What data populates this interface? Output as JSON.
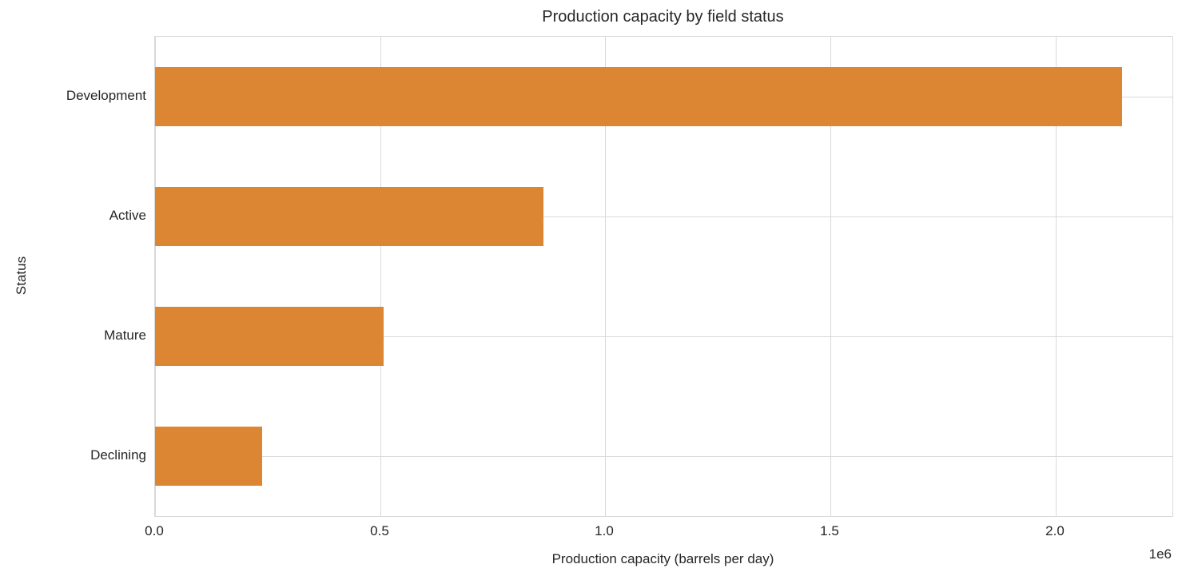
{
  "chart_data": {
    "type": "bar",
    "orientation": "horizontal",
    "title": "Production capacity by field status",
    "xlabel": "Production capacity (barrels per day)",
    "ylabel": "Status",
    "categories": [
      "Development",
      "Active",
      "Mature",
      "Declining"
    ],
    "values": [
      2148000,
      863000,
      508000,
      238000
    ],
    "xlim": [
      0,
      2260000
    ],
    "xticks": [
      0,
      500000,
      1000000,
      1500000,
      2000000
    ],
    "xtick_labels": [
      "0.0",
      "0.5",
      "1.0",
      "1.5",
      "2.0"
    ],
    "offset_text": "1e6",
    "grid": true,
    "legend": "none",
    "bar_color": "#DC8633",
    "grid_color": "#D9D9D9",
    "text_color": "#262626",
    "background_color": "#FFFFFF"
  }
}
